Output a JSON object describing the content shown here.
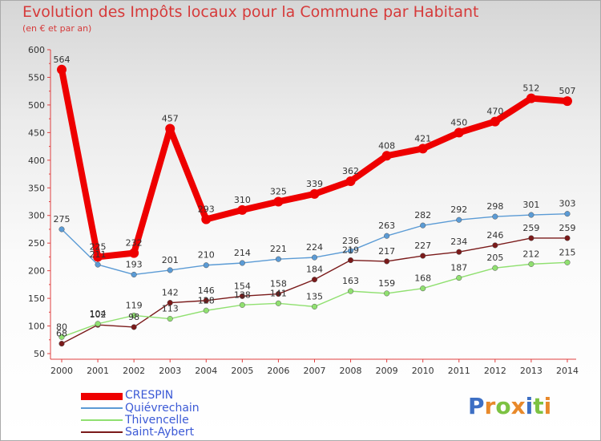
{
  "title": "Evolution des Impôts locaux pour la Commune par Habitant",
  "subtitle": "(en € et par an)",
  "logo": {
    "text": "Proxiti",
    "colors": [
      "#3d6fc4",
      "#e8892a",
      "#7cc242",
      "#e8892a",
      "#3d6fc4",
      "#7cc242",
      "#e8892a"
    ]
  },
  "chart_data": {
    "type": "line",
    "title": "Evolution des Impôts locaux pour la Commune par Habitant",
    "subtitle": "(en € et par an)",
    "xlabel": "",
    "ylabel": "",
    "x": [
      "2000",
      "2001",
      "2002",
      "2003",
      "2004",
      "2005",
      "2006",
      "2007",
      "2008",
      "2009",
      "2010",
      "2011",
      "2012",
      "2013",
      "2014"
    ],
    "ylim": [
      50,
      600
    ],
    "yticks": [
      50,
      100,
      150,
      200,
      250,
      300,
      350,
      400,
      450,
      500,
      550,
      600
    ],
    "grid": false,
    "legend_position": "bottom-left",
    "series": [
      {
        "name": "CRESPIN",
        "color": "#ee0000",
        "values": [
          564,
          225,
          232,
          457,
          293,
          310,
          325,
          339,
          362,
          408,
          421,
          450,
          470,
          512,
          507
        ],
        "labels": [
          "564",
          "225",
          "232",
          "457",
          "293",
          "310",
          "325",
          "339",
          "362",
          "408",
          "421",
          "450",
          "470",
          "512",
          "507"
        ]
      },
      {
        "name": "Quiévrechain",
        "color": "#5b9bd5",
        "values": [
          275,
          211,
          193,
          201,
          210,
          214,
          221,
          224,
          236,
          263,
          282,
          292,
          298,
          301,
          303
        ],
        "labels": [
          "275",
          "211",
          "193",
          "201",
          "210",
          "214",
          "221",
          "224",
          "236",
          "263",
          "282",
          "292",
          "298",
          "301",
          "303"
        ]
      },
      {
        "name": "Thivencelle",
        "color": "#90e070",
        "values": [
          80,
          104,
          119,
          113,
          128,
          138,
          141,
          135,
          163,
          159,
          168,
          187,
          205,
          212,
          215
        ],
        "labels": [
          "80",
          "104",
          "119",
          "113",
          "128",
          "138",
          "141",
          "135",
          "163",
          "159",
          "168",
          "187",
          "205",
          "212",
          "215"
        ]
      },
      {
        "name": "Saint-Aybert",
        "color": "#7a1a1a",
        "values": [
          68,
          102,
          98,
          142,
          146,
          154,
          158,
          184,
          219,
          217,
          227,
          234,
          246,
          259,
          259
        ],
        "labels": [
          "68",
          "102",
          "98",
          "142",
          "146",
          "154",
          "158",
          "184",
          "219",
          "217",
          "227",
          "234",
          "246",
          "259",
          "259"
        ]
      }
    ]
  }
}
